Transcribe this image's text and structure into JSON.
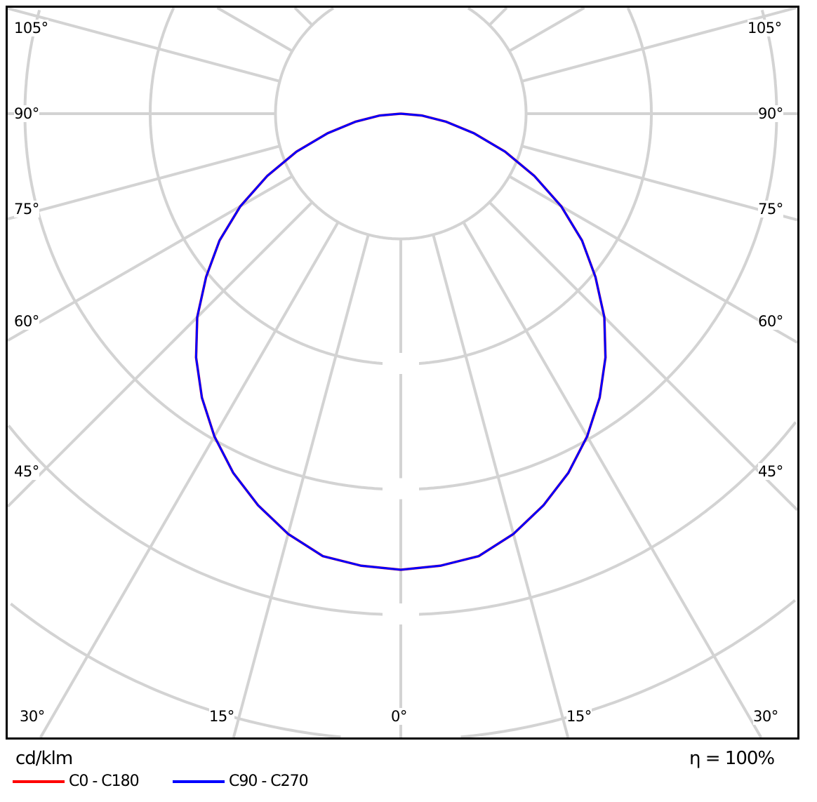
{
  "chart_data": {
    "type": "polar",
    "unit_label": "cd/klm",
    "efficiency_label": "η = 100%",
    "angle_labels_left": [
      "105°",
      "90°",
      "75°",
      "60°",
      "45°",
      "30°"
    ],
    "angle_labels_bottom": [
      "15°",
      "0°",
      "15°",
      "30°"
    ],
    "angle_labels_right": [
      "105°",
      "90°",
      "75°",
      "60°",
      "45°"
    ],
    "gamma_deg": [
      0,
      5,
      10,
      15,
      20,
      25,
      30,
      35,
      40,
      45,
      50,
      55,
      60,
      65,
      70,
      75,
      80,
      85,
      90
    ],
    "series": [
      {
        "name": "C0 - C180",
        "color": "#ff0000",
        "values_relative": [
          1,
          0.995,
          0.985,
          0.954,
          0.914,
          0.869,
          0.817,
          0.76,
          0.698,
          0.631,
          0.557,
          0.485,
          0.406,
          0.323,
          0.243,
          0.166,
          0.1,
          0.046,
          0
        ]
      },
      {
        "name": "C90 - C270",
        "color": "#0000ff",
        "values_relative": [
          1,
          0.995,
          0.985,
          0.954,
          0.914,
          0.869,
          0.817,
          0.76,
          0.698,
          0.631,
          0.557,
          0.485,
          0.406,
          0.323,
          0.243,
          0.166,
          0.1,
          0.046,
          0
        ]
      }
    ],
    "grid": true,
    "grid_color": "#d3d3d3",
    "legend_position": "bottom-left"
  }
}
